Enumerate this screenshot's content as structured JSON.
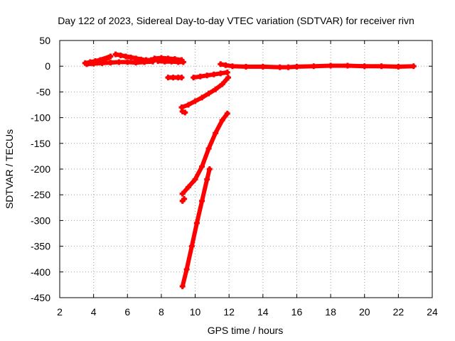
{
  "chart_data": {
    "type": "scatter",
    "title": "Day 122 of 2023, Sidereal Day-to-day VTEC variation (SDTVAR) for receiver rivn",
    "xlabel": "GPS time / hours",
    "ylabel": "SDTVAR / TECUs",
    "xlim": [
      2,
      24
    ],
    "ylim": [
      -450,
      50
    ],
    "xticks": [
      2,
      4,
      6,
      8,
      10,
      12,
      14,
      16,
      18,
      20,
      22,
      24
    ],
    "yticks": [
      50,
      0,
      -50,
      -100,
      -150,
      -200,
      -250,
      -300,
      -350,
      -400,
      -450
    ],
    "grid": true,
    "legend": "none",
    "color": "#ff0000",
    "series": [
      {
        "points": [
          [
            3.5,
            6
          ],
          [
            3.8,
            8
          ],
          [
            4.1,
            10
          ],
          [
            4.4,
            12
          ],
          [
            4.7,
            14
          ],
          [
            4.9,
            17
          ],
          [
            5.0,
            19
          ],
          [
            3.6,
            4
          ],
          [
            4.0,
            5
          ],
          [
            4.5,
            6
          ],
          [
            5.0,
            7
          ],
          [
            5.5,
            8
          ],
          [
            6.0,
            8
          ],
          [
            6.5,
            7
          ],
          [
            7.0,
            8
          ],
          [
            7.5,
            9
          ],
          [
            5.3,
            23
          ],
          [
            5.6,
            21
          ],
          [
            5.9,
            19
          ],
          [
            6.2,
            17
          ],
          [
            6.5,
            15
          ],
          [
            6.8,
            13
          ],
          [
            7.1,
            12
          ],
          [
            7.4,
            12
          ],
          [
            7.6,
            15
          ],
          [
            8.0,
            16
          ],
          [
            8.4,
            15
          ],
          [
            8.8,
            14
          ],
          [
            9.2,
            12
          ],
          [
            7.8,
            10
          ],
          [
            8.2,
            9
          ],
          [
            8.6,
            9
          ],
          [
            9.0,
            8
          ],
          [
            9.3,
            8
          ]
        ]
      },
      {
        "points": [
          [
            8.4,
            -22
          ],
          [
            8.7,
            -22
          ],
          [
            9.0,
            -22
          ],
          [
            9.2,
            -22
          ]
        ]
      },
      {
        "points": [
          [
            9.9,
            -22
          ],
          [
            10.3,
            -20
          ],
          [
            10.7,
            -18
          ],
          [
            11.1,
            -16
          ],
          [
            11.5,
            -14
          ],
          [
            11.9,
            -12
          ]
        ]
      },
      {
        "points": [
          [
            11.5,
            4
          ],
          [
            11.8,
            2
          ],
          [
            12.2,
            0
          ],
          [
            13,
            -1
          ],
          [
            14,
            -1
          ],
          [
            15,
            -2
          ],
          [
            15.5,
            -2
          ],
          [
            16,
            -1
          ],
          [
            17,
            0
          ],
          [
            18,
            1
          ],
          [
            19,
            1
          ],
          [
            20,
            0
          ],
          [
            21,
            0
          ],
          [
            22,
            -1
          ],
          [
            22.9,
            0
          ]
        ]
      },
      {
        "points": [
          [
            9.2,
            -80
          ],
          [
            9.6,
            -75
          ],
          [
            10.0,
            -68
          ],
          [
            10.4,
            -61
          ],
          [
            10.8,
            -53
          ],
          [
            11.2,
            -45
          ],
          [
            11.6,
            -35
          ],
          [
            11.95,
            -22
          ]
        ]
      },
      {
        "points": [
          [
            9.25,
            -88
          ],
          [
            9.4,
            -90
          ]
        ]
      },
      {
        "points": [
          [
            9.25,
            -248
          ],
          [
            9.6,
            -235
          ],
          [
            10.0,
            -220
          ],
          [
            10.4,
            -195
          ],
          [
            10.8,
            -160
          ],
          [
            11.2,
            -130
          ],
          [
            11.6,
            -105
          ],
          [
            11.9,
            -92
          ]
        ]
      },
      {
        "points": [
          [
            9.25,
            -262
          ],
          [
            9.35,
            -258
          ]
        ]
      },
      {
        "points": [
          [
            9.25,
            -428
          ],
          [
            9.5,
            -395
          ],
          [
            9.8,
            -350
          ],
          [
            10.1,
            -305
          ],
          [
            10.4,
            -262
          ],
          [
            10.7,
            -220
          ],
          [
            10.85,
            -200
          ]
        ]
      }
    ]
  }
}
